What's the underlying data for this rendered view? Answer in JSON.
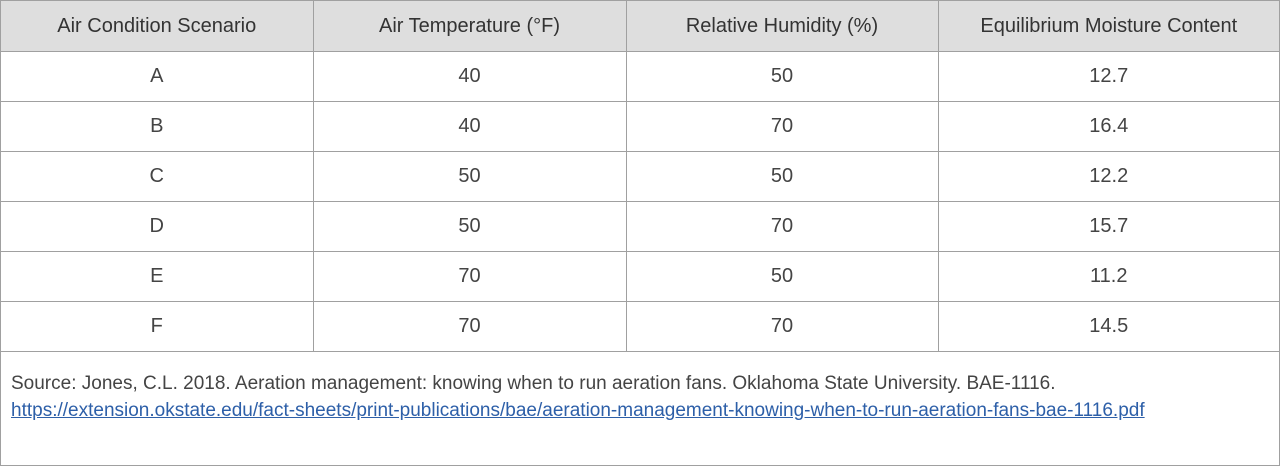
{
  "table": {
    "headers": [
      "Air Condition Scenario",
      "Air Temperature (°F)",
      "Relative Humidity (%)",
      "Equilibrium Moisture Content"
    ],
    "rows": [
      [
        "A",
        40,
        50,
        12.7
      ],
      [
        "B",
        40,
        70,
        16.4
      ],
      [
        "C",
        50,
        50,
        12.2
      ],
      [
        "D",
        50,
        70,
        15.7
      ],
      [
        "E",
        70,
        50,
        11.2
      ],
      [
        "F",
        70,
        70,
        14.5
      ]
    ]
  },
  "source": {
    "text": "Source: Jones, C.L. 2018. Aeration management: knowing when to run aeration fans. Oklahoma State University. BAE-1116.",
    "link": "https://extension.okstate.edu/fact-sheets/print-publications/bae/aeration-management-knowing-when-to-run-aeration-fans-bae-1116.pdf"
  }
}
